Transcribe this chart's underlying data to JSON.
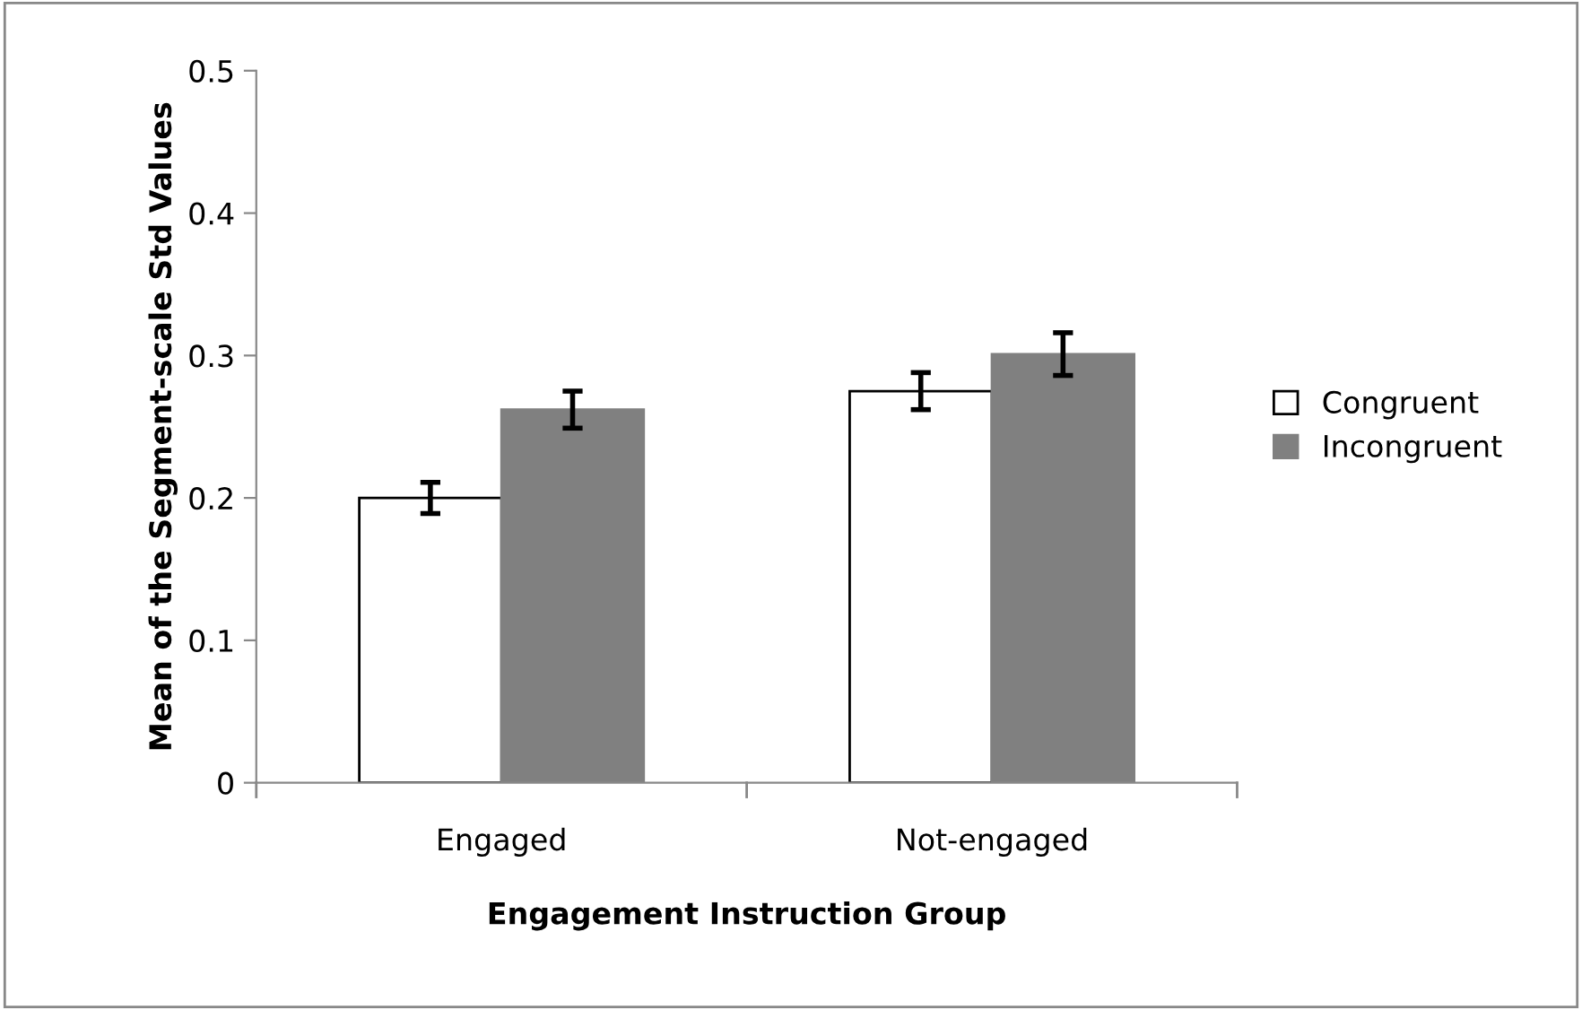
{
  "chart_data": {
    "type": "bar",
    "xlabel": "Engagement Instruction Group",
    "ylabel": "Mean of the Segment-scale Std Values",
    "categories": [
      "Engaged",
      "Not-engaged"
    ],
    "series": [
      {
        "name": "Congruent",
        "color": "#ffffff",
        "values": [
          0.2,
          0.275
        ],
        "errors": [
          0.011,
          0.013
        ]
      },
      {
        "name": "Incongruent",
        "color": "#808080",
        "values": [
          0.262,
          0.301
        ],
        "errors": [
          0.013,
          0.015
        ]
      }
    ],
    "ylim": [
      0,
      0.5
    ],
    "yticks": [
      {
        "value": 0,
        "label": "0"
      },
      0.1,
      0.2,
      0.3,
      0.4,
      0.5
    ],
    "grid": false,
    "legend": "right"
  }
}
